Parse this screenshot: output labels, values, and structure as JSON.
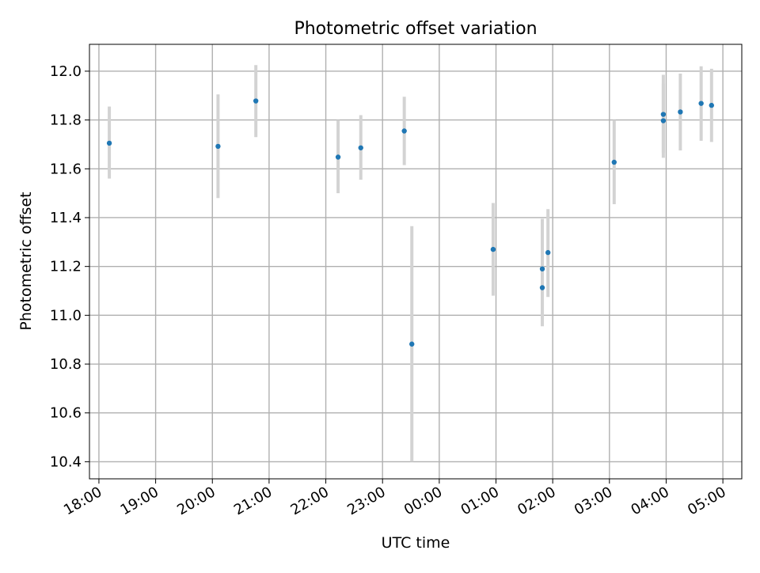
{
  "chart_data": {
    "type": "scatter",
    "title": "Photometric offset variation",
    "xlabel": "UTC time",
    "ylabel": "Photometric offset",
    "x_axis": {
      "kind": "time",
      "range": [
        "17:50",
        "05:20"
      ],
      "ticks": [
        "18:00",
        "19:00",
        "20:00",
        "21:00",
        "22:00",
        "23:00",
        "00:00",
        "01:00",
        "02:00",
        "03:00",
        "04:00",
        "05:00"
      ],
      "tick_label_rotation": 30
    },
    "y_axis": {
      "range": [
        10.33,
        12.11
      ],
      "ticks": [
        10.4,
        10.6,
        10.8,
        11.0,
        11.2,
        11.4,
        11.6,
        11.8,
        12.0
      ],
      "tick_labels": [
        "10.4",
        "10.6",
        "10.8",
        "11.0",
        "11.2",
        "11.4",
        "11.6",
        "11.8",
        "12.0"
      ]
    },
    "grid": true,
    "legend": "none",
    "colors": {
      "point": "#1f77b4",
      "errorbar": "#d3d3d3",
      "grid": "#b0b0b0",
      "axes": "#000000"
    },
    "points": [
      {
        "x": "18:11",
        "y": 11.705,
        "ylow": 11.56,
        "yhigh": 11.855
      },
      {
        "x": "20:06",
        "y": 11.692,
        "ylow": 11.48,
        "yhigh": 11.905
      },
      {
        "x": "20:46",
        "y": 11.878,
        "ylow": 11.73,
        "yhigh": 12.025
      },
      {
        "x": "22:13",
        "y": 11.648,
        "ylow": 11.5,
        "yhigh": 11.8
      },
      {
        "x": "22:37",
        "y": 11.686,
        "ylow": 11.555,
        "yhigh": 11.82
      },
      {
        "x": "23:23",
        "y": 11.755,
        "ylow": 11.615,
        "yhigh": 11.895
      },
      {
        "x": "23:31",
        "y": 10.882,
        "ylow": 10.4,
        "yhigh": 11.365
      },
      {
        "x": "00:57",
        "y": 11.27,
        "ylow": 11.08,
        "yhigh": 11.46
      },
      {
        "x": "01:49",
        "y": 11.19,
        "ylow": 10.985,
        "yhigh": 11.395
      },
      {
        "x": "01:49",
        "y": 11.113,
        "ylow": 10.955,
        "yhigh": 11.27
      },
      {
        "x": "01:55",
        "y": 11.257,
        "ylow": 11.075,
        "yhigh": 11.435
      },
      {
        "x": "03:05",
        "y": 11.627,
        "ylow": 11.455,
        "yhigh": 11.8
      },
      {
        "x": "03:57",
        "y": 11.797,
        "ylow": 11.645,
        "yhigh": 11.95
      },
      {
        "x": "03:57",
        "y": 11.823,
        "ylow": 11.665,
        "yhigh": 11.985
      },
      {
        "x": "04:15",
        "y": 11.833,
        "ylow": 11.675,
        "yhigh": 11.99
      },
      {
        "x": "04:37",
        "y": 11.868,
        "ylow": 11.715,
        "yhigh": 12.02
      },
      {
        "x": "04:48",
        "y": 11.86,
        "ylow": 11.71,
        "yhigh": 12.01
      }
    ]
  }
}
